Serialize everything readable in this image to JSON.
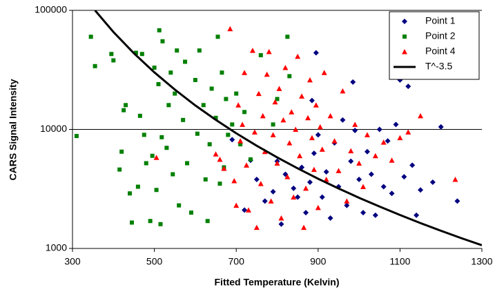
{
  "chart_data": {
    "type": "scatter",
    "xlabel": "Fitted Temperature (Kelvin)",
    "ylabel": "CARS Signal Intensity",
    "xlim": [
      300,
      1300
    ],
    "xticks": [
      300,
      500,
      700,
      900,
      1100,
      1300
    ],
    "ylim": [
      1000,
      100000
    ],
    "yticks": [
      1000,
      10000,
      100000
    ],
    "log_y": true,
    "grid": true,
    "legend": "upper right",
    "series": [
      {
        "name": "Point 1",
        "color": "#000080",
        "marker": "diamond",
        "x": [
          690,
          720,
          735,
          750,
          770,
          790,
          800,
          810,
          820,
          840,
          850,
          860,
          870,
          880,
          885,
          890,
          895,
          900,
          910,
          920,
          930,
          940,
          950,
          960,
          970,
          980,
          985,
          990,
          1000,
          1010,
          1020,
          1030,
          1040,
          1050,
          1060,
          1070,
          1080,
          1090,
          1100,
          1110,
          1120,
          1130,
          1140,
          1150,
          1180,
          1200,
          1240
        ],
        "values": [
          8200,
          2100,
          5500,
          3800,
          2500,
          3000,
          5400,
          1600,
          4200,
          3200,
          2700,
          4800,
          2000,
          3600,
          17500,
          6300,
          44000,
          9000,
          2700,
          4400,
          1800,
          7700,
          3300,
          12000,
          2300,
          5400,
          25000,
          9800,
          3800,
          2000,
          6500,
          4200,
          1900,
          10000,
          3300,
          8000,
          2900,
          11000,
          26000,
          4000,
          23000,
          5000,
          1900,
          3100,
          3600,
          10500,
          2500
        ]
      },
      {
        "name": "Point 2",
        "color": "#008000",
        "marker": "square",
        "x": [
          310,
          345,
          355,
          395,
          400,
          415,
          420,
          425,
          430,
          440,
          445,
          455,
          460,
          465,
          470,
          475,
          480,
          490,
          495,
          500,
          505,
          510,
          512,
          515,
          518,
          520,
          530,
          535,
          540,
          545,
          550,
          555,
          560,
          570,
          575,
          580,
          590,
          600,
          605,
          610,
          620,
          625,
          630,
          635,
          640,
          650,
          655,
          660,
          665,
          670,
          675,
          680,
          690,
          700,
          710,
          720,
          735,
          760,
          790,
          800,
          825,
          830
        ],
        "values": [
          8800,
          60000,
          34000,
          43000,
          38000,
          4600,
          6500,
          14500,
          16000,
          2900,
          1650,
          44000,
          3300,
          13000,
          43000,
          9000,
          5200,
          1700,
          6000,
          33000,
          3100,
          24000,
          68000,
          1600,
          8600,
          55000,
          7000,
          16000,
          30000,
          4200,
          20000,
          46000,
          2300,
          12000,
          37000,
          5200,
          2000,
          26000,
          9200,
          46000,
          16000,
          3800,
          1700,
          7500,
          22000,
          12500,
          60000,
          3500,
          30000,
          4800,
          18000,
          9000,
          11000,
          20000,
          7500,
          14000,
          5600,
          42000,
          11000,
          18000,
          60000,
          28000
        ]
      },
      {
        "name": "Point 4",
        "color": "#ff0000",
        "marker": "triangle",
        "x": [
          505,
          650,
          660,
          670,
          685,
          695,
          700,
          705,
          710,
          715,
          720,
          725,
          730,
          740,
          745,
          750,
          755,
          760,
          765,
          770,
          775,
          780,
          785,
          790,
          795,
          800,
          805,
          810,
          815,
          820,
          825,
          830,
          835,
          840,
          845,
          850,
          855,
          860,
          865,
          870,
          875,
          880,
          885,
          890,
          895,
          900,
          905,
          910,
          915,
          920,
          930,
          940,
          950,
          960,
          970,
          980,
          990,
          1000,
          1010,
          1020,
          1040,
          1060,
          1080,
          1100,
          1120,
          1150,
          1235
        ],
        "values": [
          5800,
          6200,
          5600,
          4700,
          70000,
          3700,
          2300,
          16000,
          8000,
          11000,
          30000,
          5000,
          2100,
          46000,
          9500,
          1500,
          20000,
          3500,
          13000,
          6500,
          29000,
          45000,
          2500,
          9000,
          17000,
          5200,
          22000,
          1800,
          12000,
          33000,
          4000,
          7700,
          14000,
          2700,
          10000,
          41000,
          6000,
          19000,
          1500,
          3200,
          12500,
          26000,
          8500,
          4600,
          16000,
          2200,
          10500,
          6800,
          30000,
          3800,
          13000,
          8000,
          4500,
          21000,
          2500,
          6600,
          11000,
          5200,
          3300,
          9000,
          6000,
          7800,
          5500,
          8500,
          9500,
          13000,
          3800
        ]
      },
      {
        "name": "T^-3.5",
        "color": "#000000",
        "marker": "line",
        "x": [
          355,
          400,
          450,
          500,
          550,
          600,
          650,
          700,
          750,
          800,
          850,
          900,
          950,
          1000,
          1050,
          1100,
          1150,
          1200,
          1250,
          1300
        ],
        "values": [
          100000,
          65800,
          43600,
          30150,
          21600,
          15900,
          12040,
          9280,
          7290,
          5820,
          4710,
          3850,
          3190,
          2665,
          2250,
          1910,
          1634,
          1408,
          1220,
          1064
        ]
      }
    ]
  }
}
